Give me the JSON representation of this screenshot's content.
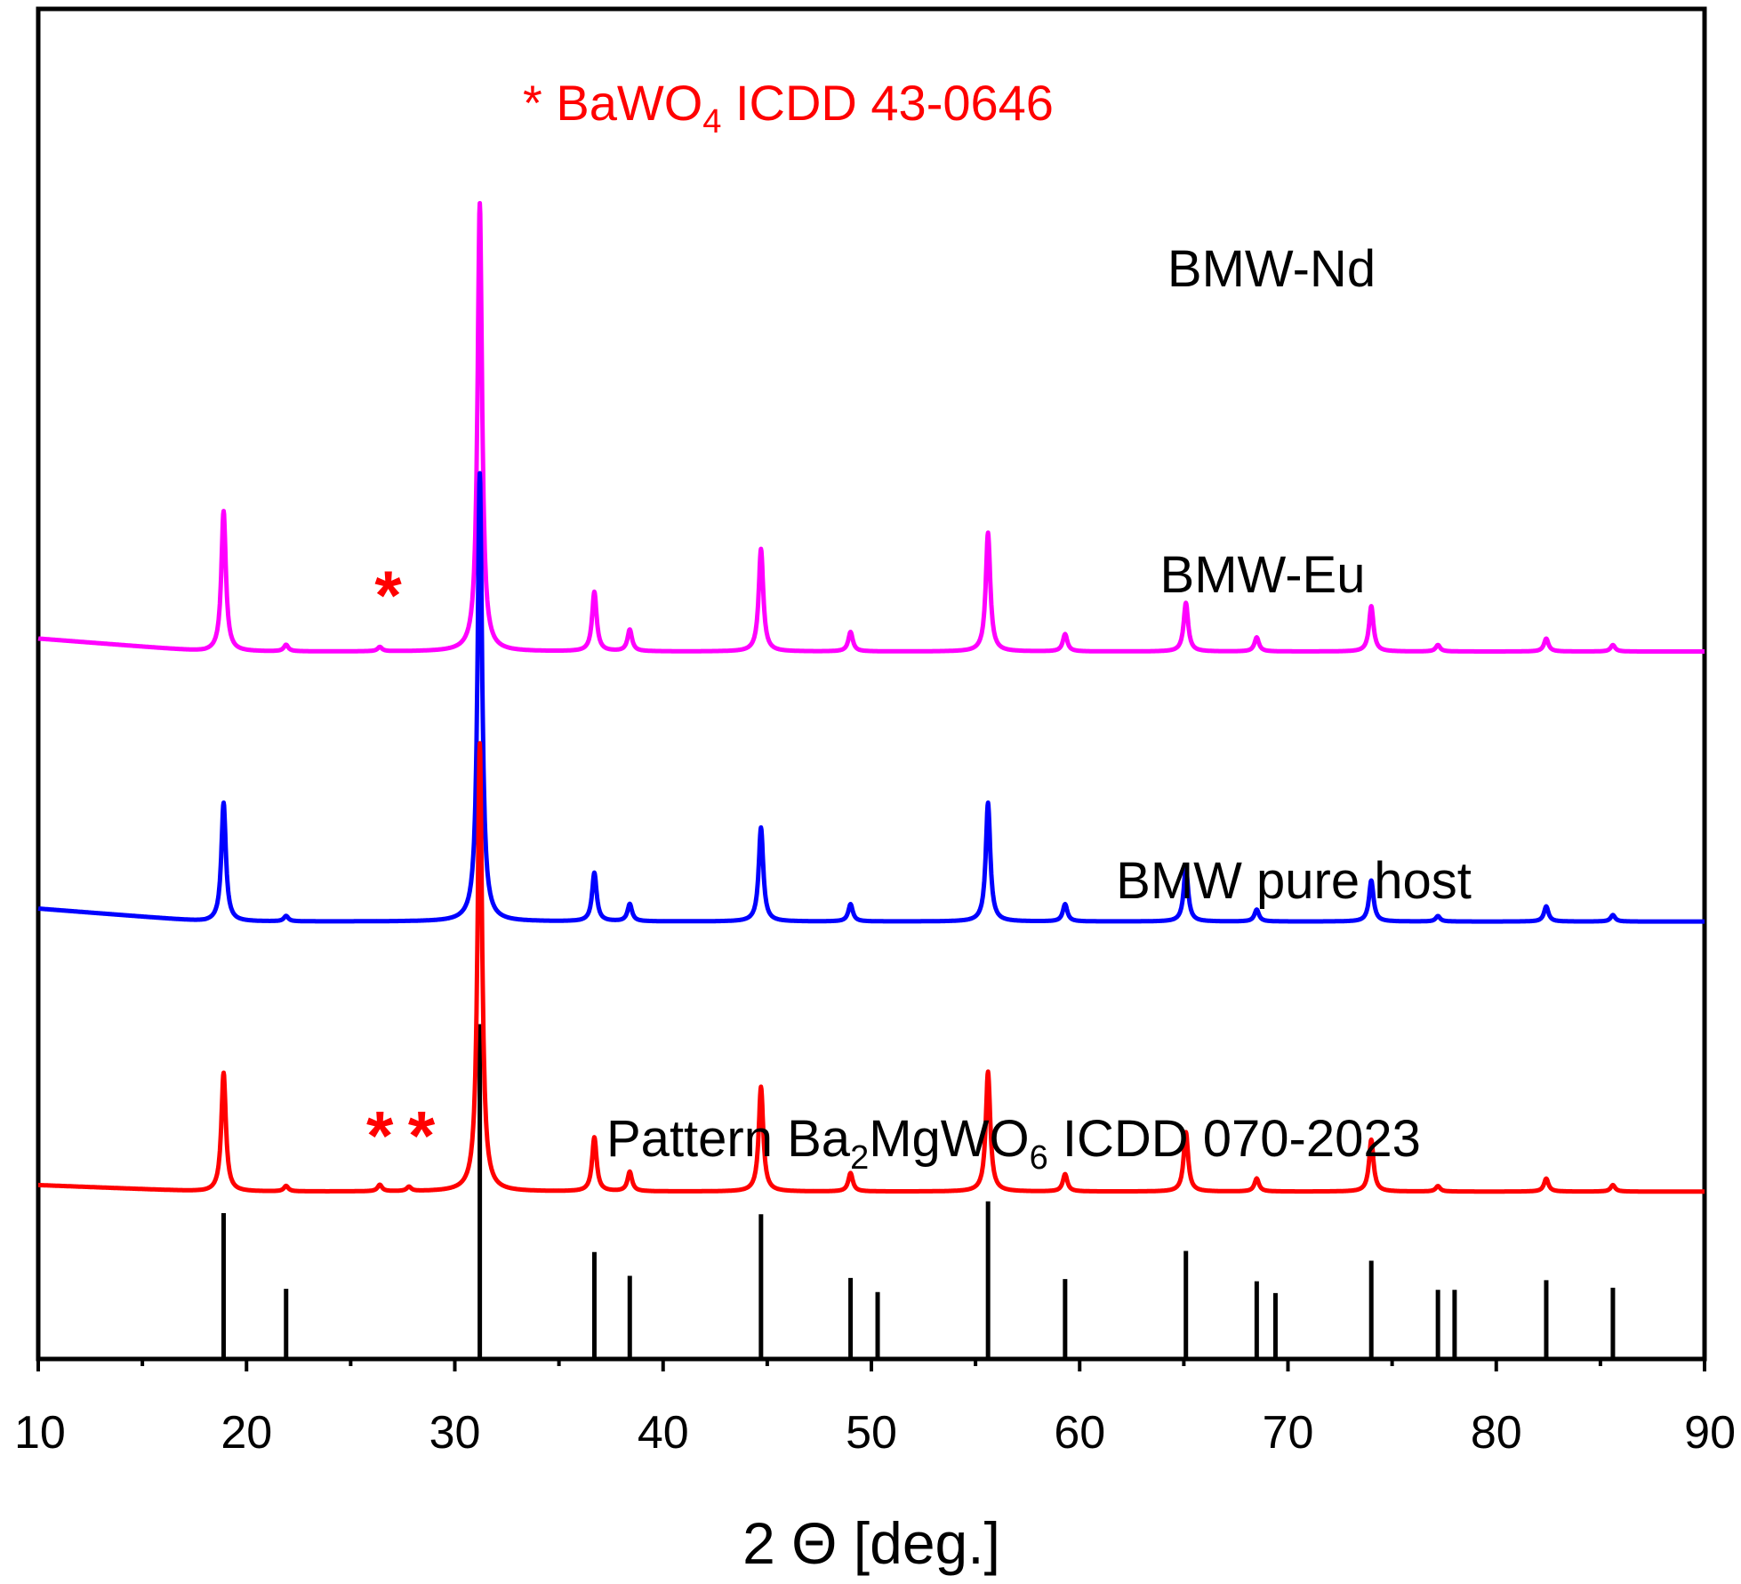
{
  "chart_data": {
    "type": "line",
    "title": "",
    "xlabel": "2 Θ [deg.]",
    "ylabel": "",
    "xlim": [
      10,
      90
    ],
    "x_major_ticks": [
      10,
      20,
      30,
      40,
      50,
      60,
      70,
      80,
      90
    ],
    "x_minor_ticks": [
      15,
      25,
      35,
      45,
      55,
      65,
      75,
      85
    ],
    "tick_labels": [
      "10",
      "20",
      "30",
      "40",
      "50",
      "60",
      "70",
      "80",
      "90"
    ],
    "ylim": [
      0,
      1.25
    ],
    "y_ticks_visible": false,
    "series": [
      {
        "name": "BMW-Nd",
        "label": "BMW-Nd",
        "color": "#ff00ff",
        "offset": 0.655,
        "baseline": [
          [
            10,
            0.012
          ],
          [
            18,
            0.0
          ],
          [
            90,
            0.0
          ]
        ],
        "peaks": [
          [
            18.9,
            0.13
          ],
          [
            21.9,
            0.006
          ],
          [
            26.4,
            0.004
          ],
          [
            31.2,
            0.415
          ],
          [
            36.7,
            0.055
          ],
          [
            38.4,
            0.02
          ],
          [
            44.7,
            0.095
          ],
          [
            49.0,
            0.018
          ],
          [
            55.6,
            0.11
          ],
          [
            59.3,
            0.016
          ],
          [
            65.1,
            0.045
          ],
          [
            68.5,
            0.013
          ],
          [
            74.0,
            0.042
          ],
          [
            77.2,
            0.006
          ],
          [
            82.4,
            0.012
          ],
          [
            85.6,
            0.006
          ]
        ]
      },
      {
        "name": "BMW-Eu",
        "label": "BMW-Eu",
        "color": "#0000ff",
        "offset": 0.405,
        "baseline": [
          [
            10,
            0.012
          ],
          [
            18,
            0.0
          ],
          [
            90,
            0.0
          ]
        ],
        "peaks": [
          [
            18.9,
            0.11
          ],
          [
            21.9,
            0.005
          ],
          [
            31.2,
            0.415
          ],
          [
            36.7,
            0.045
          ],
          [
            38.4,
            0.016
          ],
          [
            44.7,
            0.087
          ],
          [
            49.0,
            0.016
          ],
          [
            55.6,
            0.11
          ],
          [
            59.3,
            0.016
          ],
          [
            65.1,
            0.05
          ],
          [
            68.5,
            0.011
          ],
          [
            74.0,
            0.038
          ],
          [
            77.2,
            0.005
          ],
          [
            82.4,
            0.014
          ],
          [
            85.6,
            0.006
          ]
        ]
      },
      {
        "name": "BMW pure host",
        "label": "BMW pure host",
        "color": "#ff0000",
        "offset": 0.155,
        "baseline": [
          [
            10,
            0.006
          ],
          [
            18,
            0.0
          ],
          [
            90,
            0.0
          ]
        ],
        "peaks": [
          [
            18.9,
            0.11
          ],
          [
            21.9,
            0.005
          ],
          [
            26.4,
            0.006
          ],
          [
            27.8,
            0.004
          ],
          [
            31.2,
            0.415
          ],
          [
            36.7,
            0.05
          ],
          [
            38.4,
            0.018
          ],
          [
            44.7,
            0.097
          ],
          [
            49.0,
            0.017
          ],
          [
            55.6,
            0.111
          ],
          [
            59.3,
            0.016
          ],
          [
            65.1,
            0.055
          ],
          [
            68.5,
            0.012
          ],
          [
            74.0,
            0.048
          ],
          [
            77.2,
            0.005
          ],
          [
            82.4,
            0.012
          ],
          [
            85.6,
            0.006
          ]
        ]
      }
    ],
    "reference_pattern": {
      "name": "Pattern Ba2MgWO6 ICDD 070-2023",
      "color": "#000000",
      "lines": [
        [
          18.9,
          0.135
        ],
        [
          21.9,
          0.065
        ],
        [
          31.2,
          0.31
        ],
        [
          36.7,
          0.099
        ],
        [
          38.4,
          0.077
        ],
        [
          44.7,
          0.134
        ],
        [
          49.0,
          0.075
        ],
        [
          50.3,
          0.062
        ],
        [
          55.6,
          0.146
        ],
        [
          59.3,
          0.074
        ],
        [
          65.1,
          0.1
        ],
        [
          68.5,
          0.072
        ],
        [
          69.4,
          0.061
        ],
        [
          74.0,
          0.091
        ],
        [
          77.2,
          0.064
        ],
        [
          78.0,
          0.064
        ],
        [
          82.4,
          0.073
        ],
        [
          85.6,
          0.066
        ]
      ]
    },
    "impurity_markers": {
      "color": "#ff0000",
      "symbol": "*",
      "positions": [
        {
          "series": "BMW-Nd",
          "x": 26.8
        },
        {
          "series": "BMW pure host",
          "x": 26.4
        },
        {
          "series": "BMW pure host",
          "x": 28.4
        }
      ]
    },
    "annotations": [
      {
        "name": "bawo4-note",
        "text_parts": [
          "* BaWO",
          "4",
          " ICDD 43-0646"
        ],
        "color": "#ff0000"
      },
      {
        "name": "reference-label",
        "text_parts": [
          "Pattern Ba",
          "2",
          "MgWO",
          "6",
          " ICDD 070-2023"
        ],
        "color": "#000000"
      }
    ]
  }
}
